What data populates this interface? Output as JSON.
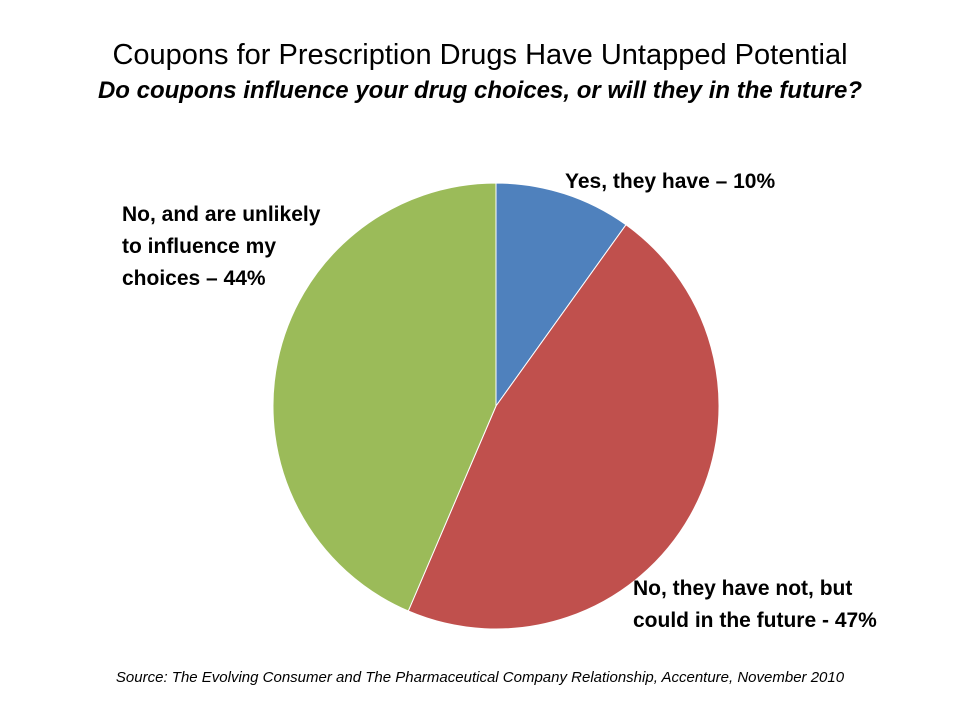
{
  "chart_data": {
    "type": "pie",
    "title": "Coupons for Prescription Drugs Have Untapped Potential",
    "subtitle": "Do coupons influence your drug choices, or will they in the future?",
    "start_angle_deg": 0,
    "direction": "clockwise",
    "slices": [
      {
        "name": "Yes, they have",
        "value": 10,
        "color": "#4F81BD",
        "label_lines": [
          "Yes, they have – 10%"
        ]
      },
      {
        "name": "No, they have not, but could in the future",
        "value": 47,
        "color": "#C0504D",
        "label_lines": [
          "No, they have not, but",
          "could in the future - 47%"
        ]
      },
      {
        "name": "No, and are unlikely to influence my choices",
        "value": 44,
        "color": "#9BBB59",
        "label_lines": [
          "No, and are unlikely",
          "to influence my",
          "choices – 44%"
        ]
      }
    ]
  },
  "source": "Source: The Evolving Consumer and The Pharmaceutical Company Relationship, Accenture, November 2010"
}
